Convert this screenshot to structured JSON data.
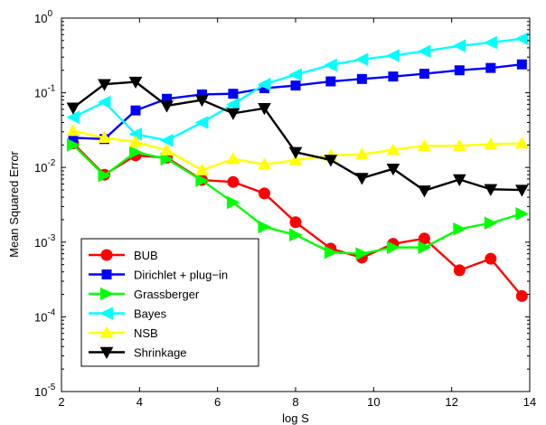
{
  "chart_data": {
    "type": "line",
    "xlabel": "log S",
    "ylabel": "Mean Squared Error",
    "xlim": [
      2,
      14
    ],
    "ylim_log10": [
      -5,
      0
    ],
    "yscale": "log",
    "grid": false,
    "legend_position": "bottom-left",
    "x_ticks": [
      "2",
      "4",
      "6",
      "8",
      "10",
      "12",
      "14"
    ],
    "y_ticks": [
      {
        "base": "10",
        "exp": "0"
      },
      {
        "base": "10",
        "exp": "-1"
      },
      {
        "base": "10",
        "exp": "-2"
      },
      {
        "base": "10",
        "exp": "-3"
      },
      {
        "base": "10",
        "exp": "-4"
      },
      {
        "base": "10",
        "exp": "-5"
      }
    ],
    "x": [
      2.3,
      3.1,
      3.9,
      4.7,
      5.6,
      6.4,
      7.2,
      8.0,
      8.9,
      9.7,
      10.5,
      11.3,
      12.2,
      13.0,
      13.8
    ],
    "series": [
      {
        "name": "BUB",
        "color": "#ff0000",
        "marker": "circle",
        "values": [
          0.021,
          0.008,
          0.0145,
          0.0135,
          0.0068,
          0.0064,
          0.0045,
          0.00185,
          0.00082,
          0.00062,
          0.00095,
          0.00112,
          0.00042,
          0.0006,
          0.00019
        ]
      },
      {
        "name": "Dirichlet + plug−in",
        "color": "#0000ff",
        "marker": "square",
        "values": [
          0.025,
          0.024,
          0.058,
          0.083,
          0.095,
          0.097,
          0.115,
          0.125,
          0.142,
          0.153,
          0.165,
          0.18,
          0.2,
          0.215,
          0.24
        ]
      },
      {
        "name": "Grassberger",
        "color": "#00ff00",
        "marker": "triangle-right",
        "values": [
          0.02,
          0.0078,
          0.016,
          0.013,
          0.0067,
          0.0034,
          0.0016,
          0.00125,
          0.00073,
          0.0007,
          0.00085,
          0.00085,
          0.0015,
          0.0018,
          0.0024
        ]
      },
      {
        "name": "Bayes",
        "color": "#00ffff",
        "marker": "triangle-left",
        "values": [
          0.047,
          0.075,
          0.028,
          0.023,
          0.04,
          0.07,
          0.13,
          0.175,
          0.235,
          0.28,
          0.315,
          0.36,
          0.425,
          0.47,
          0.53
        ]
      },
      {
        "name": "NSB",
        "color": "#ffff00",
        "marker": "triangle-up",
        "values": [
          0.031,
          0.025,
          0.022,
          0.017,
          0.0092,
          0.013,
          0.011,
          0.0125,
          0.0145,
          0.015,
          0.0172,
          0.0195,
          0.0195,
          0.0205,
          0.021
        ]
      },
      {
        "name": "Shrinkage",
        "color": "#000000",
        "marker": "triangle-down",
        "values": [
          0.063,
          0.13,
          0.14,
          0.067,
          0.08,
          0.053,
          0.062,
          0.016,
          0.0126,
          0.0072,
          0.0096,
          0.0049,
          0.0069,
          0.0051,
          0.005
        ]
      }
    ]
  }
}
